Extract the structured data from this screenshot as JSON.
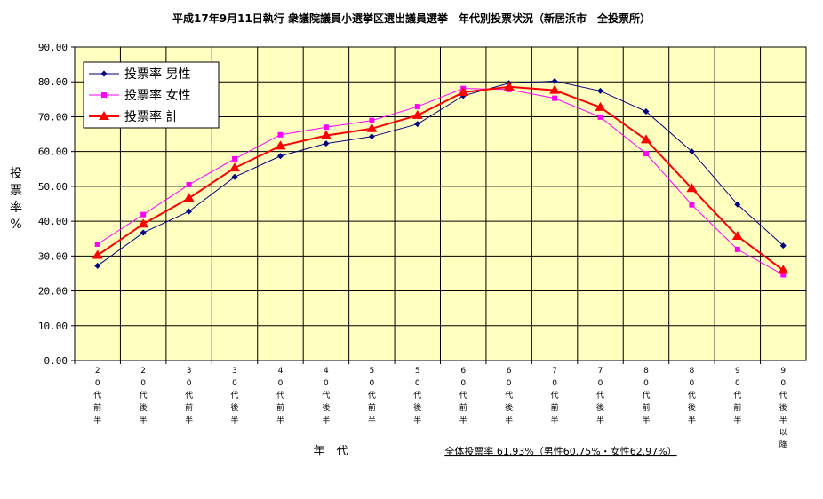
{
  "chart_data": {
    "type": "line",
    "title": "平成17年9月11日執行 衆議院議員小選挙区選出議員選挙　年代別投票状況（新居浜市　全投票所）",
    "xlabel": "年　代",
    "ylabel": "投票率%",
    "ylim": [
      0,
      90
    ],
    "yticks": [
      "0.00",
      "10.00",
      "20.00",
      "30.00",
      "40.00",
      "50.00",
      "60.00",
      "70.00",
      "80.00",
      "90.00"
    ],
    "categories": [
      "20代前半",
      "20代後半",
      "30代前半",
      "30代後半",
      "40代前半",
      "40代後半",
      "50代前半",
      "50代後半",
      "60代前半",
      "60代後半",
      "70代前半",
      "70代後半",
      "80代前半",
      "80代後半",
      "90代前半",
      "90代後半以降"
    ],
    "series": [
      {
        "name": "投票率 男性",
        "color": "#000080",
        "marker": "diamond",
        "values": [
          27.2,
          36.7,
          42.8,
          52.7,
          58.7,
          62.3,
          64.3,
          67.9,
          76.0,
          79.6,
          80.2,
          77.4,
          71.5,
          60.0,
          44.8,
          33.0
        ]
      },
      {
        "name": "投票率 女性",
        "color": "#ff00ff",
        "marker": "square",
        "values": [
          33.4,
          41.9,
          50.5,
          57.9,
          64.8,
          67.0,
          68.9,
          72.9,
          78.1,
          77.8,
          75.3,
          69.9,
          59.4,
          44.7,
          31.9,
          24.6
        ]
      },
      {
        "name": "投票率 計",
        "color": "#ff0000",
        "marker": "triangle",
        "values": [
          30.2,
          39.2,
          46.6,
          55.3,
          61.6,
          64.6,
          66.6,
          70.4,
          77.0,
          78.6,
          77.6,
          72.7,
          63.4,
          49.4,
          35.7,
          25.9
        ]
      }
    ],
    "legend_position": "top-left",
    "grid": true,
    "plot_background": "#ffffc0",
    "annotation": "全体投票率 61.93%（男性60.75%・女性62.97%）"
  }
}
